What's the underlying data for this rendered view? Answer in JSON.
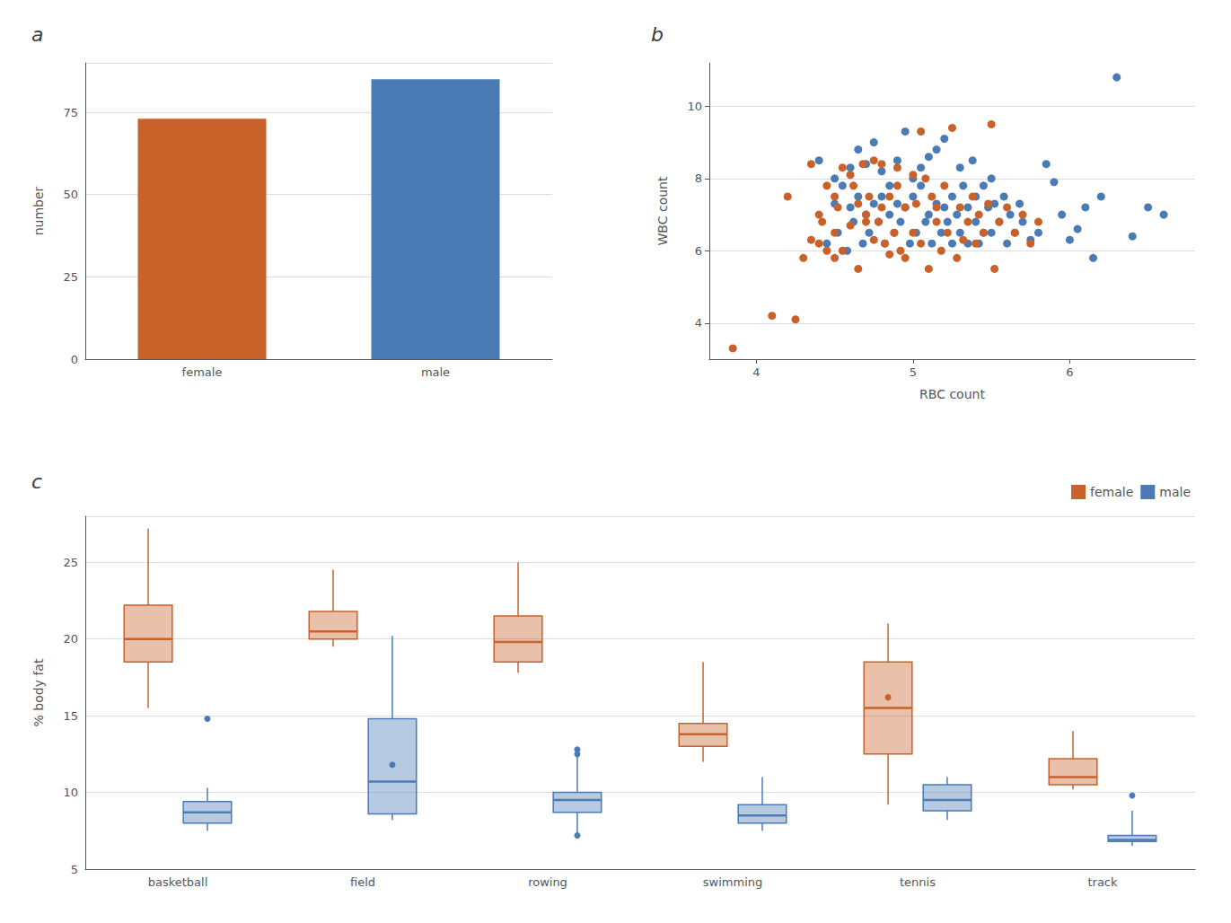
{
  "chart_data": [
    {
      "type": "bar",
      "title": "a",
      "ylabel": "number",
      "categories": [
        "female",
        "male"
      ],
      "values": [
        73,
        85
      ],
      "colors": [
        "#C8622A",
        "#4A7BB5"
      ],
      "ylim": [
        0,
        90
      ],
      "yticks": [
        0,
        25,
        50,
        75
      ],
      "grid": true
    },
    {
      "type": "scatter",
      "title": "b",
      "xlabel": "RBC count",
      "ylabel": "WBC count",
      "series": [
        {
          "color": "#C8622A",
          "x": [
            3.85,
            4.1,
            4.2,
            4.25,
            4.3,
            4.35,
            4.35,
            4.4,
            4.4,
            4.42,
            4.45,
            4.45,
            4.5,
            4.5,
            4.5,
            4.52,
            4.55,
            4.55,
            4.6,
            4.6,
            4.62,
            4.65,
            4.65,
            4.68,
            4.7,
            4.7,
            4.72,
            4.75,
            4.75,
            4.78,
            4.8,
            4.8,
            4.82,
            4.85,
            4.85,
            4.88,
            4.9,
            4.9,
            4.92,
            4.95,
            4.95,
            5.0,
            5.0,
            5.02,
            5.05,
            5.05,
            5.08,
            5.1,
            5.12,
            5.15,
            5.15,
            5.18,
            5.2,
            5.22,
            5.25,
            5.28,
            5.3,
            5.32,
            5.35,
            5.38,
            5.4,
            5.42,
            5.45,
            5.48,
            5.5,
            5.52,
            5.55,
            5.6,
            5.65,
            5.7,
            5.75,
            5.8
          ],
          "values": [
            3.3,
            4.2,
            7.5,
            4.1,
            5.8,
            8.4,
            6.3,
            7.0,
            6.2,
            6.8,
            7.8,
            6.0,
            6.5,
            7.5,
            5.8,
            7.2,
            8.3,
            6.0,
            8.1,
            6.7,
            7.8,
            7.3,
            5.5,
            8.4,
            6.8,
            7.0,
            7.5,
            6.3,
            8.5,
            6.8,
            7.2,
            8.4,
            6.2,
            7.5,
            5.9,
            6.5,
            7.8,
            8.3,
            6.0,
            7.2,
            5.8,
            8.1,
            6.5,
            7.3,
            9.3,
            6.2,
            8.0,
            5.5,
            7.5,
            6.8,
            7.2,
            6.0,
            7.8,
            6.5,
            9.4,
            5.8,
            7.2,
            6.3,
            6.8,
            7.5,
            6.2,
            7.0,
            6.5,
            7.3,
            9.5,
            5.5,
            6.8,
            7.2,
            6.5,
            7.0,
            6.2,
            6.8
          ]
        },
        {
          "color": "#4A7BB5",
          "x": [
            4.4,
            4.45,
            4.5,
            4.5,
            4.52,
            4.55,
            4.58,
            4.6,
            4.6,
            4.62,
            4.65,
            4.65,
            4.68,
            4.7,
            4.7,
            4.72,
            4.75,
            4.75,
            4.78,
            4.8,
            4.8,
            4.82,
            4.85,
            4.85,
            4.88,
            4.9,
            4.9,
            4.92,
            4.95,
            4.95,
            4.98,
            5.0,
            5.0,
            5.02,
            5.05,
            5.05,
            5.08,
            5.1,
            5.1,
            5.12,
            5.15,
            5.15,
            5.18,
            5.2,
            5.2,
            5.22,
            5.25,
            5.25,
            5.28,
            5.3,
            5.3,
            5.32,
            5.35,
            5.35,
            5.38,
            5.4,
            5.4,
            5.42,
            5.45,
            5.45,
            5.48,
            5.5,
            5.5,
            5.52,
            5.55,
            5.58,
            5.6,
            5.62,
            5.65,
            5.68,
            5.7,
            5.75,
            5.8,
            5.85,
            5.9,
            5.95,
            6.0,
            6.05,
            6.1,
            6.15,
            6.2,
            6.3,
            6.4,
            6.5,
            6.6
          ],
          "values": [
            8.5,
            6.2,
            7.3,
            8.0,
            6.5,
            7.8,
            6.0,
            7.2,
            8.3,
            6.8,
            7.5,
            8.8,
            6.2,
            7.0,
            8.4,
            6.5,
            7.3,
            9.0,
            6.8,
            7.5,
            8.2,
            6.2,
            7.0,
            7.8,
            6.5,
            7.3,
            8.5,
            6.8,
            7.2,
            9.3,
            6.2,
            7.5,
            8.0,
            6.5,
            7.8,
            8.3,
            6.8,
            7.0,
            8.6,
            6.2,
            7.3,
            8.8,
            6.5,
            7.2,
            9.1,
            6.8,
            7.5,
            6.2,
            7.0,
            8.3,
            6.5,
            7.8,
            6.2,
            7.2,
            8.5,
            6.8,
            7.5,
            6.2,
            7.8,
            6.5,
            7.2,
            8.0,
            6.5,
            7.3,
            6.8,
            7.5,
            6.2,
            7.0,
            6.5,
            7.3,
            6.8,
            6.3,
            6.5,
            8.4,
            7.9,
            7.0,
            6.3,
            6.6,
            7.2,
            5.8,
            7.5,
            10.8,
            6.4,
            7.2,
            7.0
          ]
        }
      ],
      "xlim": [
        3.7,
        6.8
      ],
      "xticks": [
        4,
        5,
        6
      ],
      "ylim": [
        3.0,
        11.2
      ],
      "yticks": [
        4,
        6,
        8,
        10
      ],
      "grid": true
    },
    {
      "type": "boxplot",
      "title": "c",
      "ylabel": "% body fat",
      "categories": [
        "basketball",
        "field",
        "rowing",
        "swimming",
        "tennis",
        "track"
      ],
      "series": [
        {
          "name": "female",
          "color": "#C8622A",
          "values": [
            [
              15.5,
              18.5,
              20.0,
              22.2,
              27.2
            ],
            [
              19.5,
              20.0,
              20.5,
              21.8,
              24.5
            ],
            [
              17.8,
              18.5,
              19.8,
              21.5,
              25.0
            ],
            [
              12.0,
              13.0,
              13.8,
              14.5,
              18.5
            ],
            [
              9.2,
              12.5,
              15.5,
              18.5,
              21.0
            ],
            [
              10.2,
              10.5,
              11.0,
              12.2,
              14.0
            ]
          ],
          "outliers": [
            [],
            [],
            [],
            [],
            [
              16.2
            ],
            []
          ]
        },
        {
          "name": "male",
          "color": "#4A7BB5",
          "values": [
            [
              7.5,
              8.0,
              8.7,
              9.4,
              10.3
            ],
            [
              8.2,
              8.6,
              10.7,
              14.8,
              20.2
            ],
            [
              7.2,
              8.7,
              9.5,
              10.0,
              12.8
            ],
            [
              7.5,
              8.0,
              8.5,
              9.2,
              11.0
            ],
            [
              8.2,
              8.8,
              9.5,
              10.5,
              11.0
            ],
            [
              6.5,
              6.8,
              6.9,
              7.2,
              8.8
            ]
          ],
          "outliers": [
            [
              14.8
            ],
            [
              11.8
            ],
            [
              7.2,
              12.8,
              12.5
            ],
            [],
            [],
            [
              9.8
            ]
          ]
        }
      ],
      "ylim": [
        5,
        28
      ],
      "yticks": [
        5,
        10,
        15,
        20,
        25
      ],
      "grid": true,
      "legend": "upper right"
    }
  ]
}
